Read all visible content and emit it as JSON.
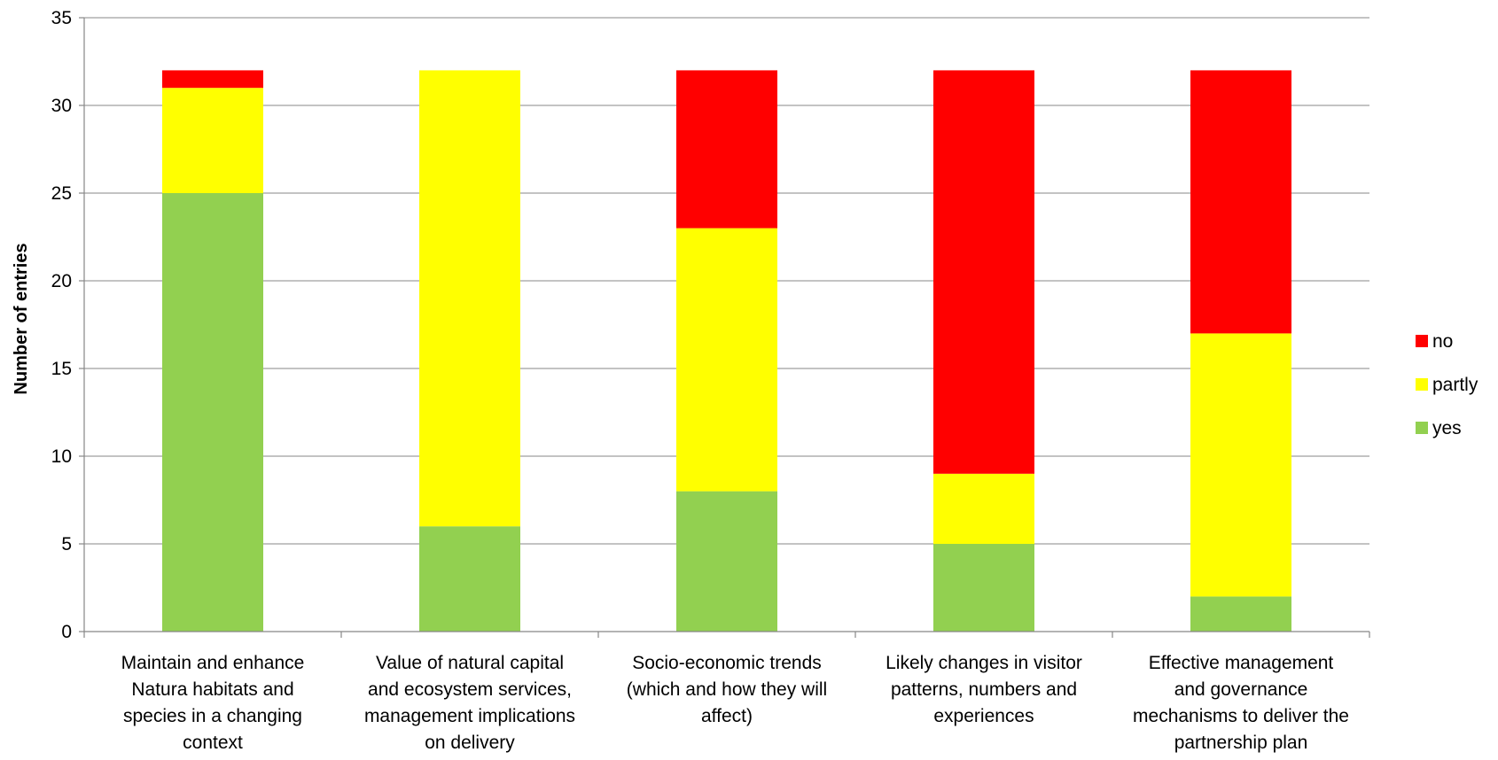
{
  "chart_data": {
    "type": "bar",
    "stacked": true,
    "title": "",
    "xlabel": "",
    "ylabel": "Number of entries",
    "ylim": [
      0,
      35
    ],
    "yticks": [
      0,
      5,
      10,
      15,
      20,
      25,
      30,
      35
    ],
    "grid": true,
    "legend_position": "right",
    "categories": [
      [
        "Maintain and enhance",
        "Natura habitats and",
        "species in a changing",
        "context"
      ],
      [
        "Value of natural capital",
        "and ecosystem services,",
        "management implications",
        "on delivery"
      ],
      [
        "Socio-economic trends",
        "(which and how they will",
        "affect)"
      ],
      [
        "Likely changes in visitor",
        "patterns, numbers and",
        "experiences"
      ],
      [
        "Effective management",
        "and governance",
        "mechanisms to deliver the",
        "partnership plan"
      ]
    ],
    "series": [
      {
        "name": "yes",
        "color": "#92d050",
        "values": [
          25,
          6,
          8,
          5,
          2
        ]
      },
      {
        "name": "partly",
        "color": "#ffff00",
        "values": [
          6,
          26,
          15,
          4,
          15
        ]
      },
      {
        "name": "no",
        "color": "#ff0000",
        "values": [
          1,
          0,
          9,
          23,
          15
        ]
      }
    ],
    "legend_order": [
      "no",
      "partly",
      "yes"
    ]
  }
}
